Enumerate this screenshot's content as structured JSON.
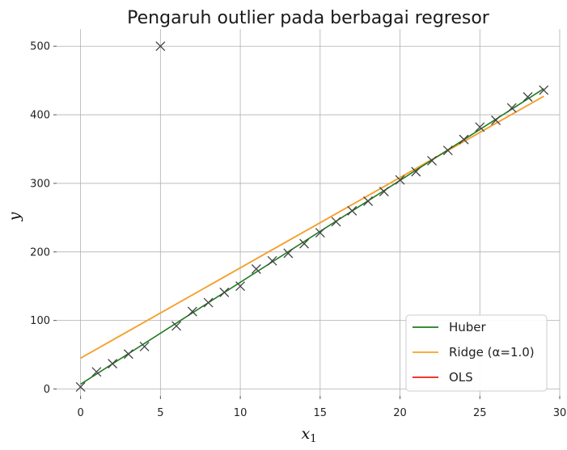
{
  "chart_data": {
    "type": "scatter",
    "title": "Pengaruh outlier pada berbagai regresor",
    "xlabel": "x",
    "xlabel_sub": "1",
    "ylabel": "y",
    "xlim": [
      -1.5,
      30
    ],
    "ylim": [
      -10,
      525
    ],
    "x_ticks": [
      0,
      5,
      10,
      15,
      20,
      25,
      30
    ],
    "y_ticks": [
      0,
      100,
      200,
      300,
      400,
      500
    ],
    "grid": true,
    "legend_position": "bottom-right",
    "points": {
      "marker": "x",
      "color": "#444444",
      "x": [
        0,
        1,
        2,
        3,
        4,
        5,
        6,
        7,
        8,
        9,
        10,
        11,
        12,
        13,
        14,
        15,
        16,
        17,
        18,
        19,
        20,
        21,
        22,
        23,
        24,
        25,
        26,
        27,
        28,
        29
      ],
      "y": [
        3,
        25,
        37,
        51,
        62,
        500,
        92,
        113,
        126,
        141,
        150,
        175,
        187,
        198,
        212,
        228,
        244,
        260,
        274,
        288,
        305,
        317,
        333,
        348,
        364,
        382,
        392,
        410,
        426,
        436
      ]
    },
    "series": [
      {
        "name": "Huber",
        "color": "#1f7a1f",
        "x": [
          0,
          29
        ],
        "y": [
          7,
          438
        ]
      },
      {
        "name": "Ridge (α=1.0)",
        "color": "#f5a623",
        "x": [
          0,
          29
        ],
        "y": [
          45,
          427
        ]
      },
      {
        "name": "OLS",
        "color": "#e8200c",
        "x": [
          0,
          29
        ],
        "y": [
          45,
          427
        ]
      }
    ]
  }
}
